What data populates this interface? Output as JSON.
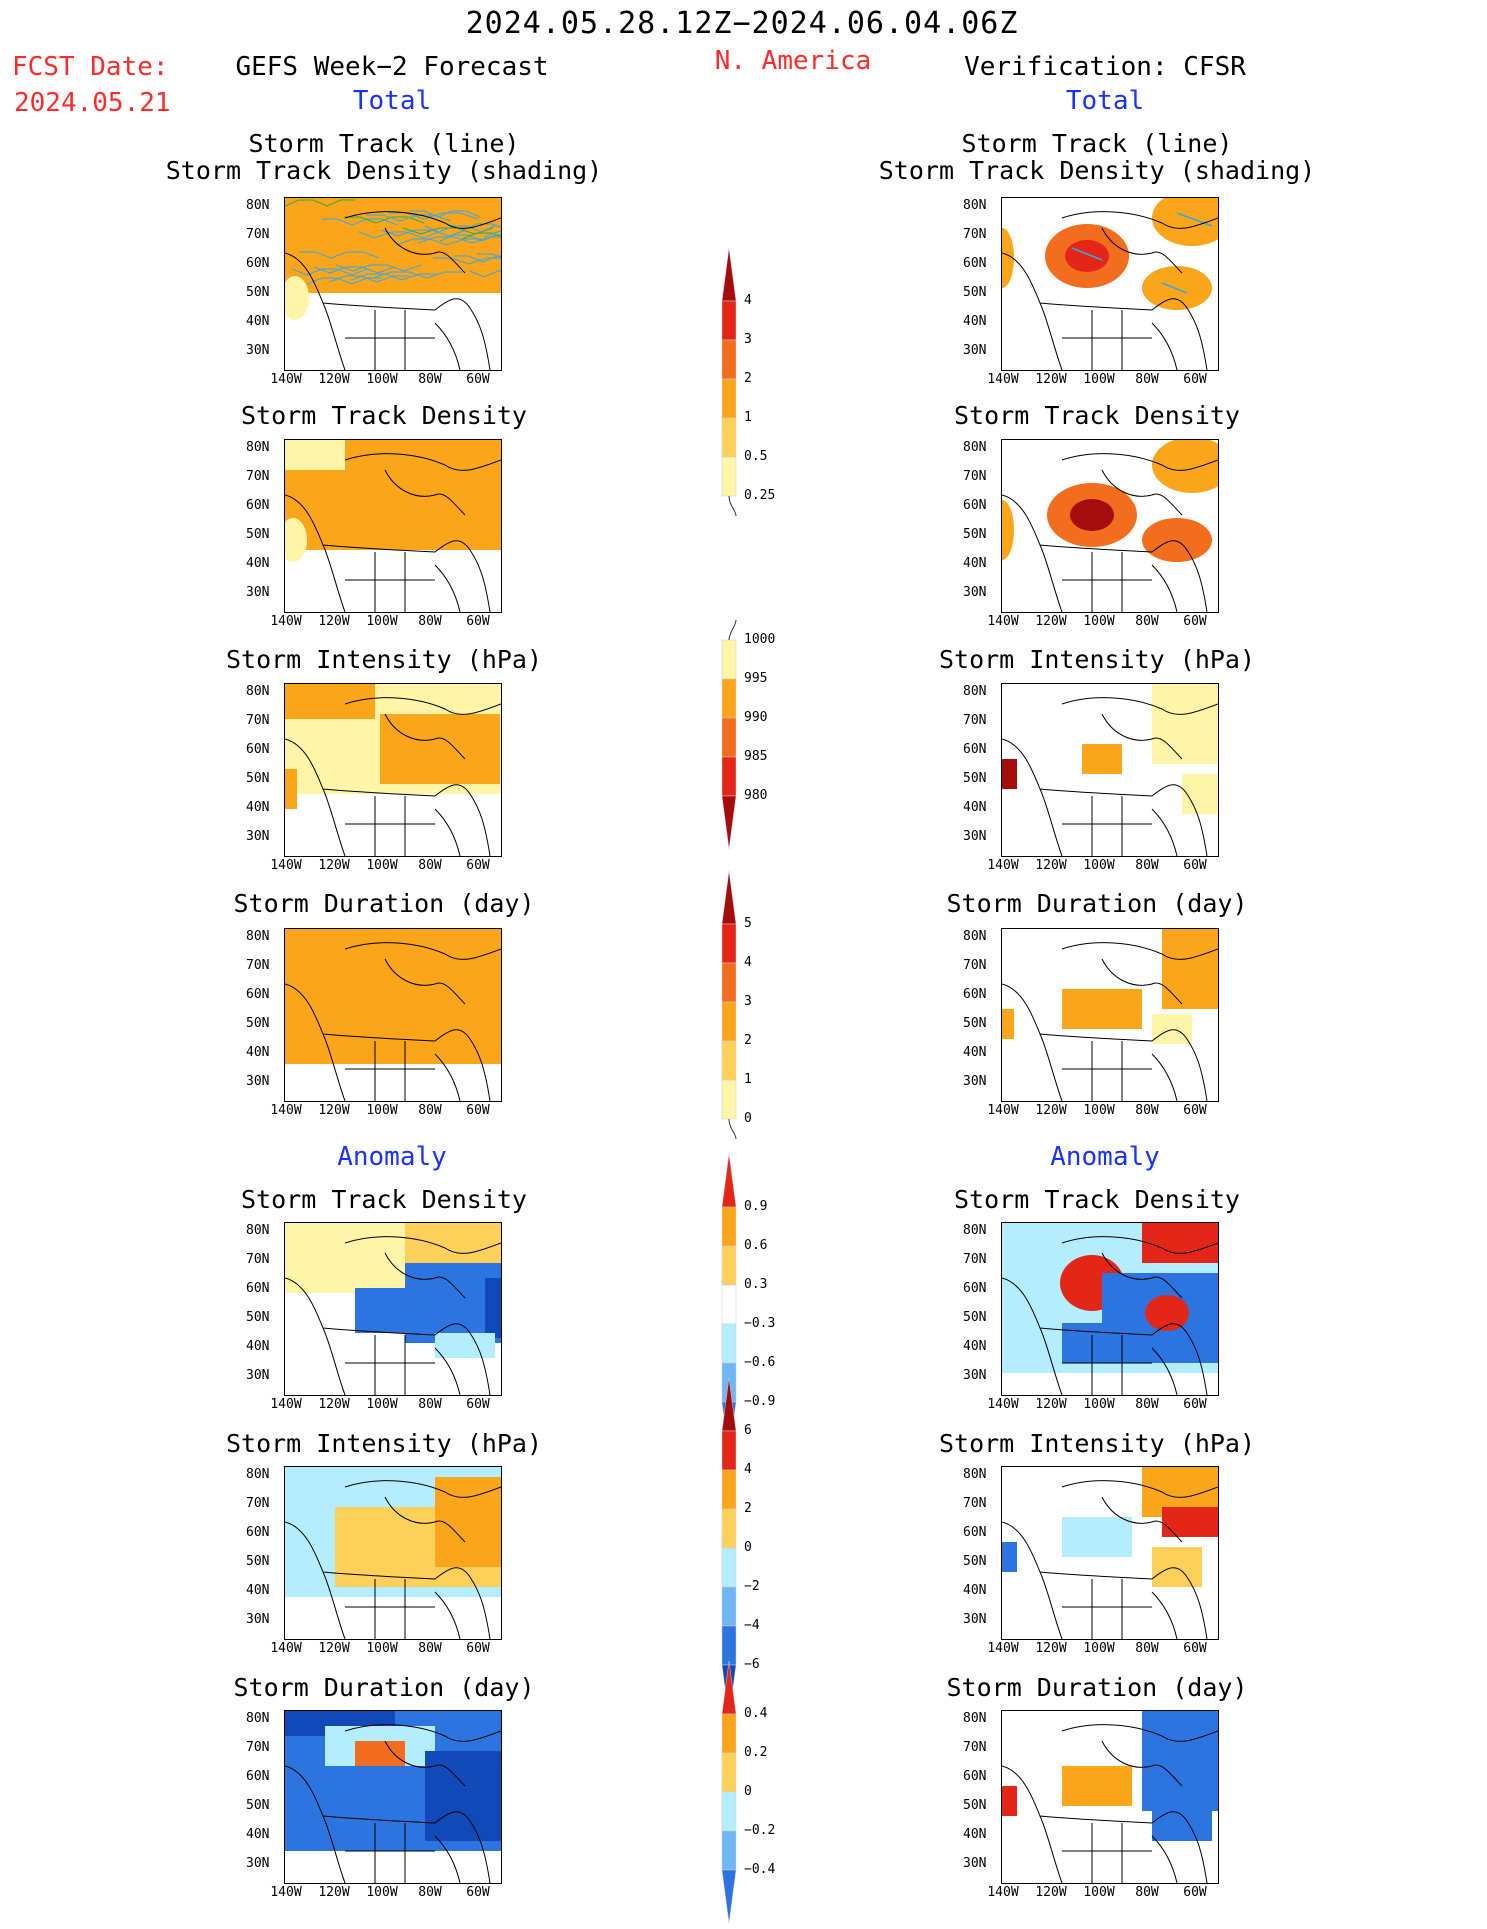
{
  "header": {
    "period": "2024.05.28.12Z−2024.06.04.06Z",
    "fcst_label": "FCST Date:",
    "fcst_date": "2024.05.21",
    "left_title": "GEFS Week−2 Forecast",
    "region": "N. America",
    "right_title": "Verification: CFSR",
    "total_left": "Total",
    "total_right": "Total",
    "anomaly_left": "Anomaly",
    "anomaly_right": "Anomaly"
  },
  "panel_titles": {
    "track_line_1": "Storm Track (line)",
    "track_line_2": "Storm Track Density (shading)",
    "density": "Storm Track Density",
    "intensity": "Storm Intensity (hPa)",
    "duration": "Storm Duration (day)"
  },
  "axes": {
    "lat_labels": [
      "80N",
      "70N",
      "60N",
      "50N",
      "40N",
      "30N"
    ],
    "lon_labels": [
      "140W",
      "120W",
      "100W",
      "80W",
      "60W"
    ]
  },
  "colorbars": {
    "density_total": [
      "4",
      "3",
      "2",
      "1",
      "0.5",
      "0.25"
    ],
    "intensity_total": [
      "1000",
      "995",
      "990",
      "985",
      "980"
    ],
    "duration_total": [
      "5",
      "4",
      "3",
      "2",
      "1",
      "0"
    ],
    "density_anom": [
      "0.9",
      "0.6",
      "0.3",
      "−0.3",
      "−0.6",
      "−0.9"
    ],
    "intensity_anom": [
      "6",
      "4",
      "2",
      "0",
      "−2",
      "−4",
      "−6"
    ],
    "duration_anom": [
      "0.4",
      "0.2",
      "0",
      "−0.2",
      "−0.4"
    ]
  },
  "colors": {
    "light_yellow": "#fff5a8",
    "yellow_orange": "#fdd05a",
    "orange": "#fba51a",
    "dark_orange": "#f26e1e",
    "red": "#e42618",
    "dark_red": "#a50d0d",
    "light_blue": "#b4eefe",
    "mid_blue": "#6fb6f5",
    "blue": "#2c74e0",
    "dark_blue": "#1149b8"
  }
}
